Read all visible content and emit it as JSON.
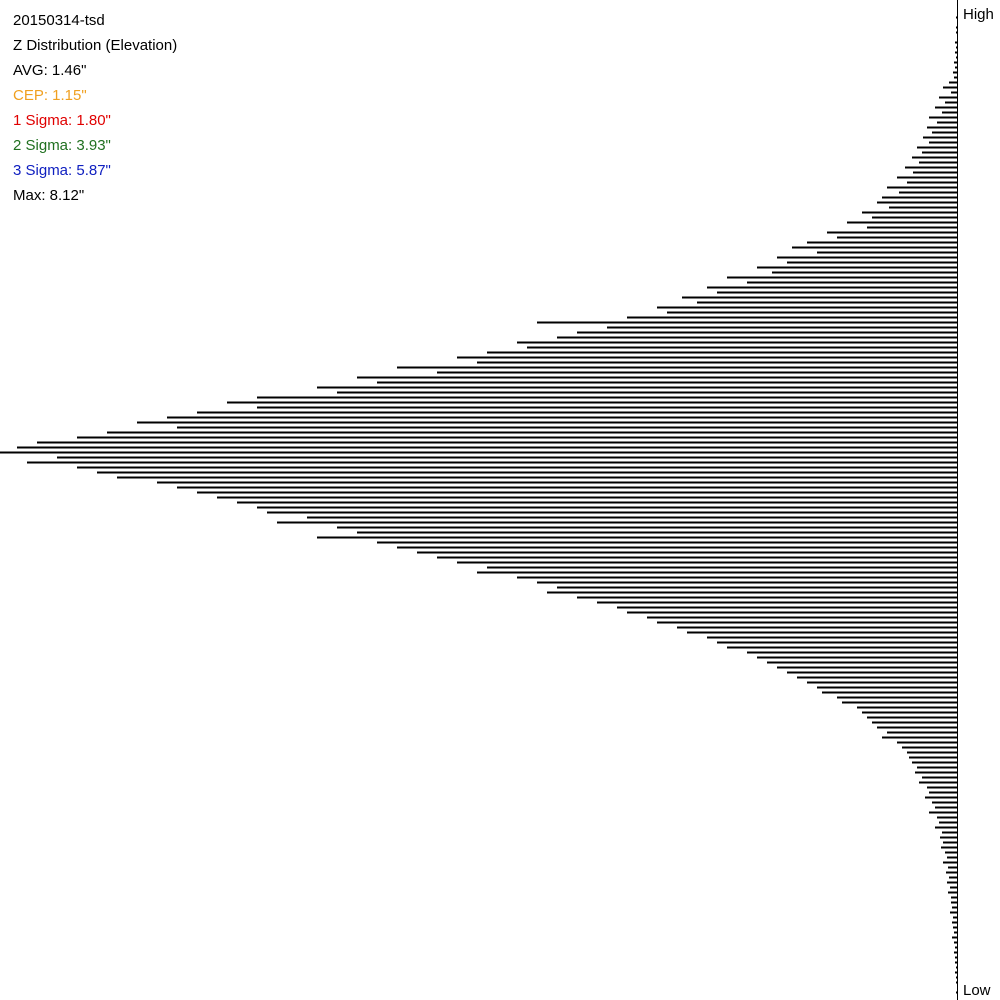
{
  "chart_data": {
    "type": "histogram",
    "orientation": "horizontal",
    "title": "20150314-tsd",
    "subtitle": "Z Distribution (Elevation)",
    "annotations": [
      {
        "text": "AVG: 1.46\"",
        "color": "#000000"
      },
      {
        "text": "CEP: 1.15\"",
        "color": "#f0a020"
      },
      {
        "text": "1 Sigma: 1.80\"",
        "color": "#e00000"
      },
      {
        "text": "2 Sigma: 3.93\"",
        "color": "#207020"
      },
      {
        "text": "3 Sigma: 5.87\"",
        "color": "#1020c0"
      },
      {
        "text": "Max: 8.12\"",
        "color": "#000000"
      }
    ],
    "y_axis_labels": [
      "High",
      "Low"
    ],
    "color": "#000000",
    "xlim": [
      0,
      957
    ],
    "values": [
      0,
      0,
      0,
      1,
      0,
      1,
      1,
      0,
      2,
      1,
      2,
      1,
      3,
      2,
      4,
      3,
      8,
      14,
      6,
      18,
      12,
      22,
      15,
      28,
      20,
      30,
      25,
      34,
      28,
      40,
      35,
      45,
      38,
      52,
      44,
      60,
      50,
      70,
      58,
      75,
      80,
      68,
      95,
      85,
      110,
      90,
      130,
      120,
      150,
      165,
      140,
      180,
      170,
      200,
      185,
      230,
      210,
      250,
      240,
      275,
      260,
      300,
      290,
      330,
      420,
      350,
      380,
      400,
      440,
      430,
      470,
      500,
      480,
      560,
      520,
      600,
      580,
      640,
      620,
      700,
      730,
      700,
      760,
      790,
      820,
      780,
      850,
      880,
      920,
      940,
      957,
      900,
      930,
      880,
      860,
      840,
      800,
      780,
      760,
      740,
      720,
      700,
      690,
      650,
      680,
      620,
      600,
      640,
      580,
      560,
      540,
      520,
      500,
      470,
      480,
      440,
      420,
      400,
      410,
      380,
      360,
      340,
      330,
      310,
      300,
      280,
      270,
      250,
      240,
      230,
      210,
      200,
      190,
      180,
      170,
      160,
      150,
      140,
      135,
      120,
      115,
      100,
      95,
      90,
      85,
      80,
      70,
      75,
      60,
      55,
      50,
      48,
      45,
      40,
      42,
      35,
      38,
      30,
      28,
      32,
      25,
      22,
      28,
      20,
      18,
      22,
      15,
      17,
      14,
      16,
      12,
      10,
      14,
      9,
      11,
      8,
      10,
      7,
      9,
      6,
      6,
      5,
      7,
      4,
      5,
      4,
      3,
      5,
      3,
      2,
      3,
      2,
      2,
      1,
      2,
      1,
      1,
      0,
      1,
      0
    ]
  }
}
